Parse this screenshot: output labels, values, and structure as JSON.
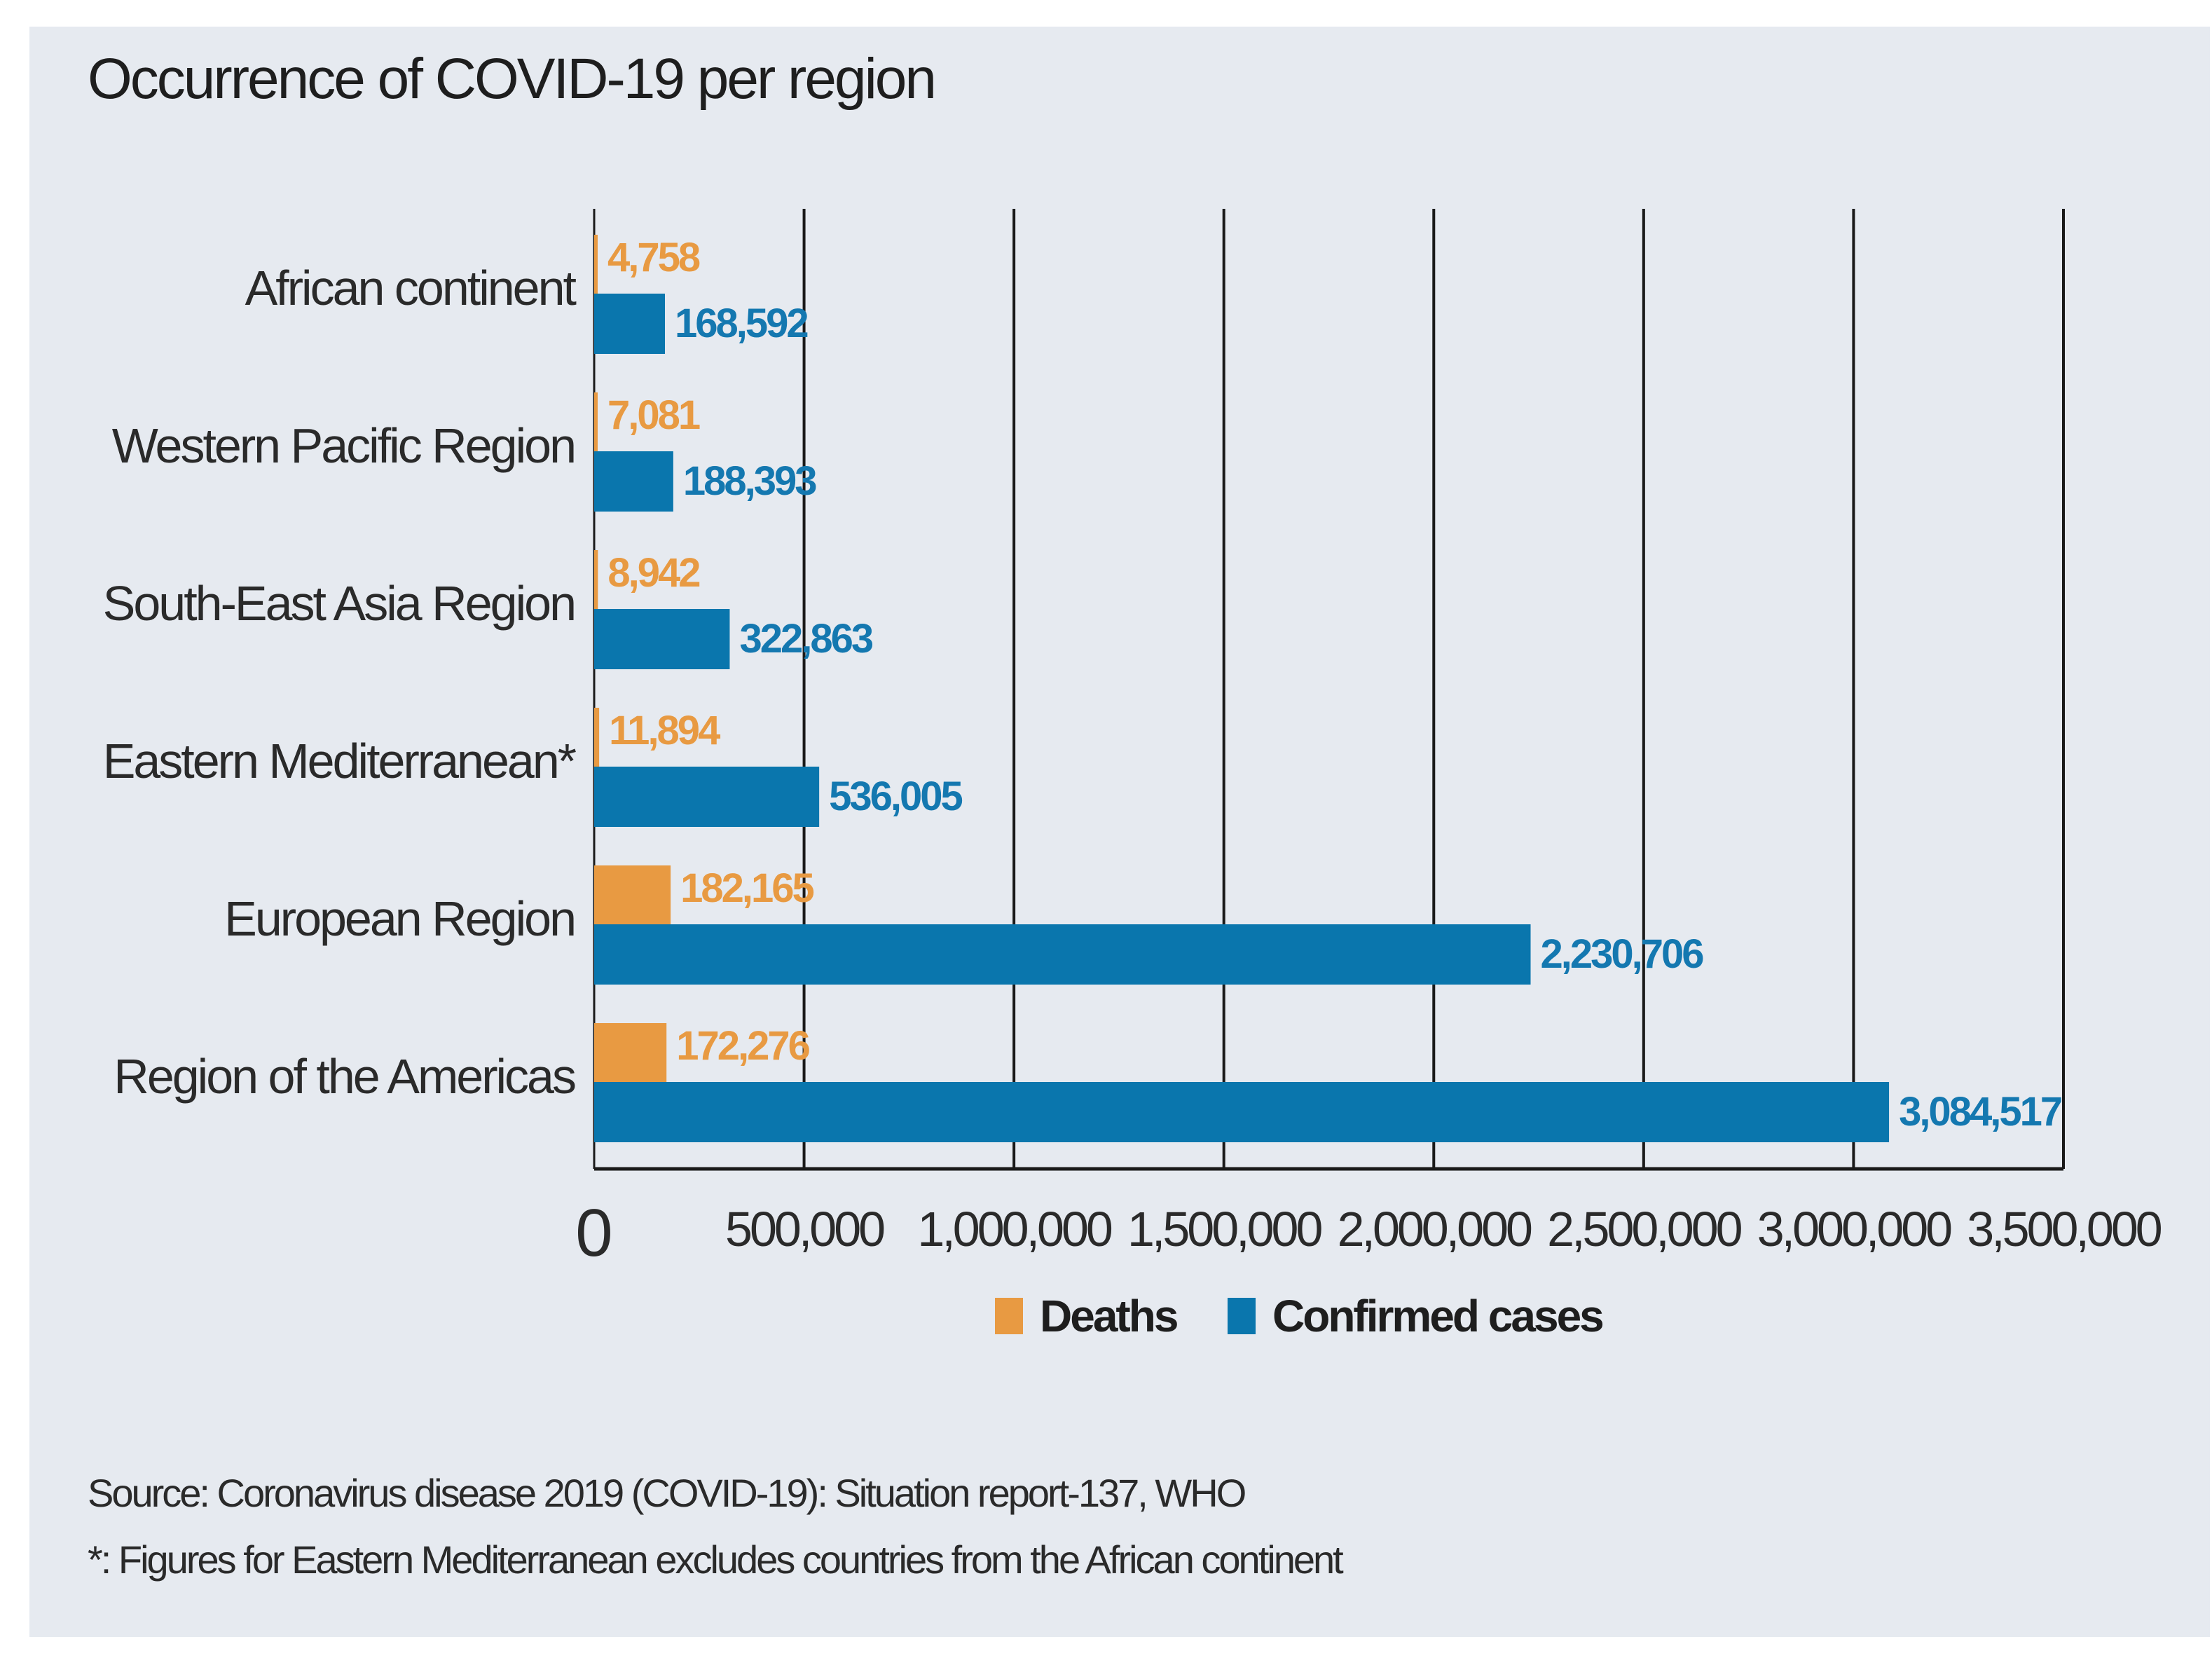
{
  "chart_data": {
    "type": "bar",
    "orientation": "horizontal",
    "title": "Occurrence of COVID-19 per region",
    "categories": [
      "African continent",
      "Western Pacific Region",
      "South-East Asia Region",
      "Eastern Mediterranean*",
      "European Region",
      "Region of the Americas"
    ],
    "series": [
      {
        "name": "Deaths",
        "color": "#e89a42",
        "values": [
          4758,
          7081,
          8942,
          11894,
          182165,
          172276
        ],
        "labels": [
          "4,758",
          "7,081",
          "8,942",
          "11,894",
          "182,165",
          "172,276"
        ]
      },
      {
        "name": "Confirmed cases",
        "color": "#0a76ad",
        "values": [
          168592,
          188393,
          322863,
          536005,
          2230706,
          3084517
        ],
        "labels": [
          "168,592",
          "188,393",
          "322,863",
          "536,005",
          "2,230,706",
          "3,084,517"
        ]
      }
    ],
    "xlim": [
      0,
      3500000
    ],
    "xticks": [
      0,
      500000,
      1000000,
      1500000,
      2000000,
      2500000,
      3000000,
      3500000
    ],
    "xtick_labels": [
      "0",
      "500,000",
      "1,000,000",
      "1,500,000",
      "2,000,000",
      "2,500,000",
      "3,000,000",
      "3,500,000"
    ],
    "grid": true,
    "legend": "bottom-center",
    "xlabel": "",
    "ylabel": ""
  },
  "notes": {
    "source": "Source: Coronavirus disease 2019 (COVID-19): Situation report-137, WHO",
    "footnote": "*: Figures for Eastern Mediterranean excludes countries from the African continent"
  }
}
